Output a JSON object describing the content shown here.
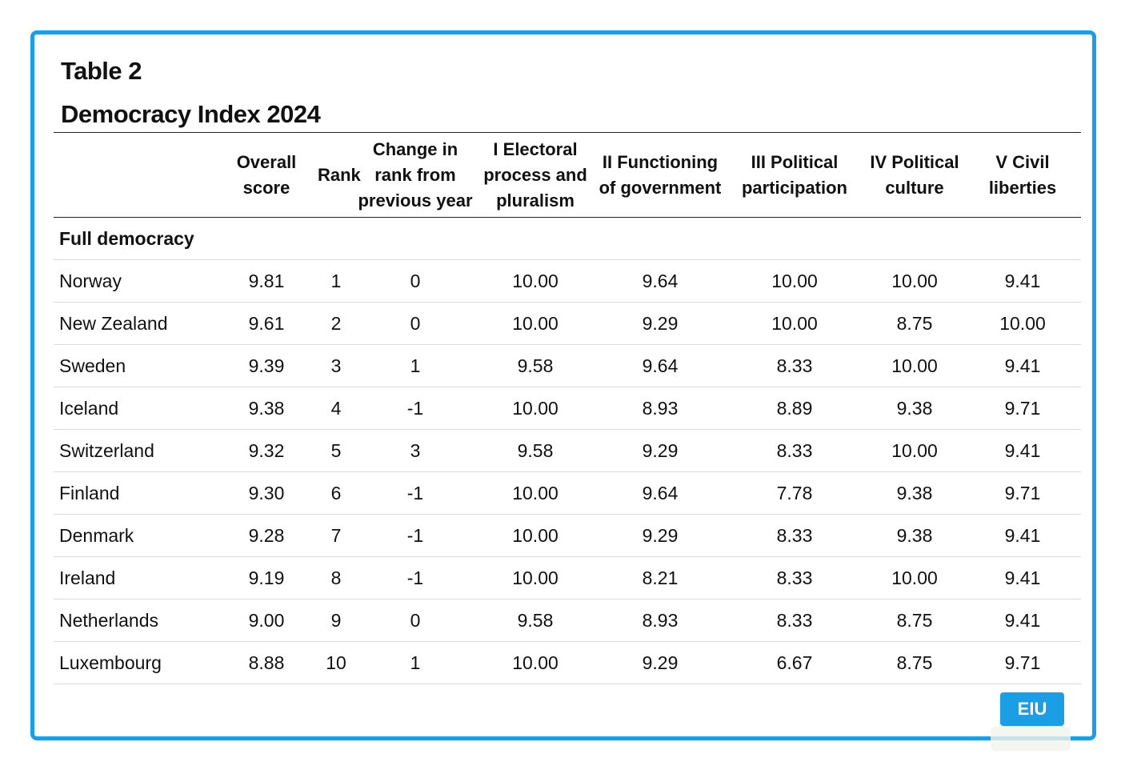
{
  "title": "Table 2",
  "subtitle": "Democracy Index 2024",
  "badge": "EIU",
  "columns": [
    "",
    "Overall score",
    "Rank",
    "Change in rank from previous year",
    "I Electoral process and pluralism",
    "II Functioning of government",
    "III Political participation",
    "IV Political culture",
    "V Civil liberties"
  ],
  "group_label": "Full democracy",
  "rows": [
    [
      "Norway",
      "9.81",
      "1",
      "0",
      "10.00",
      "9.64",
      "10.00",
      "10.00",
      "9.41"
    ],
    [
      "New Zealand",
      "9.61",
      "2",
      "0",
      "10.00",
      "9.29",
      "10.00",
      "8.75",
      "10.00"
    ],
    [
      "Sweden",
      "9.39",
      "3",
      "1",
      "9.58",
      "9.64",
      "8.33",
      "10.00",
      "9.41"
    ],
    [
      "Iceland",
      "9.38",
      "4",
      "-1",
      "10.00",
      "8.93",
      "8.89",
      "9.38",
      "9.71"
    ],
    [
      "Switzerland",
      "9.32",
      "5",
      "3",
      "9.58",
      "9.29",
      "8.33",
      "10.00",
      "9.41"
    ],
    [
      "Finland",
      "9.30",
      "6",
      "-1",
      "10.00",
      "9.64",
      "7.78",
      "9.38",
      "9.71"
    ],
    [
      "Denmark",
      "9.28",
      "7",
      "-1",
      "10.00",
      "9.29",
      "8.33",
      "9.38",
      "9.41"
    ],
    [
      "Ireland",
      "9.19",
      "8",
      "-1",
      "10.00",
      "8.21",
      "8.33",
      "10.00",
      "9.41"
    ],
    [
      "Netherlands",
      "9.00",
      "9",
      "0",
      "9.58",
      "8.93",
      "8.33",
      "8.75",
      "9.41"
    ],
    [
      "Luxembourg",
      "8.88",
      "10",
      "1",
      "10.00",
      "9.29",
      "6.67",
      "8.75",
      "9.71"
    ]
  ]
}
